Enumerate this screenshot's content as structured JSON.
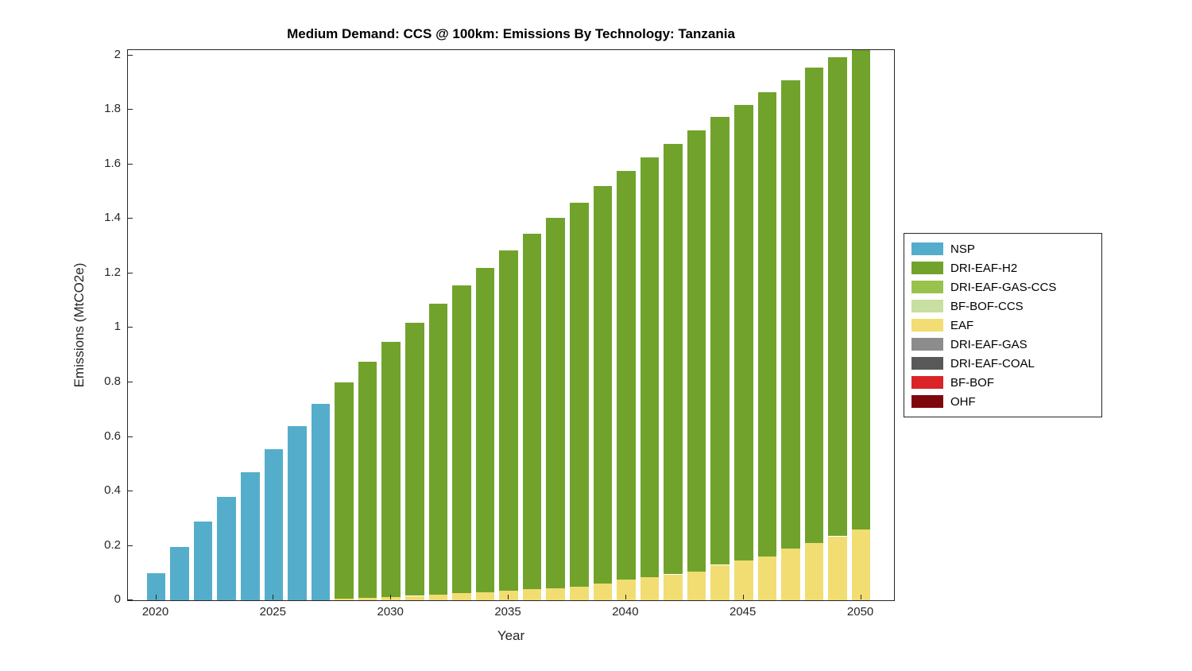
{
  "chart_data": {
    "type": "bar",
    "stacked": true,
    "title": "Medium Demand: CCS @ 100km: Emissions By Technology: Tanzania",
    "xlabel": "Year",
    "ylabel": "Emissions (MtCO2e)",
    "grid": false,
    "legend_position": "outside-right",
    "axis_color": "#262626",
    "bar_rel_width": 0.8,
    "xlim": [
      2018.8,
      2051.4
    ],
    "ylim": [
      0,
      2.02
    ],
    "xticks": [
      2020,
      2025,
      2030,
      2035,
      2040,
      2045,
      2050
    ],
    "yticks": [
      0,
      0.2,
      0.4,
      0.6,
      0.8,
      1,
      1.2,
      1.4,
      1.6,
      1.8,
      2
    ],
    "ytick_labels": [
      "0",
      "0.2",
      "0.4",
      "0.6",
      "0.8",
      "1",
      "1.2",
      "1.4",
      "1.6",
      "1.8",
      "2"
    ],
    "x": [
      2020,
      2021,
      2022,
      2023,
      2024,
      2025,
      2026,
      2027,
      2028,
      2029,
      2030,
      2031,
      2032,
      2033,
      2034,
      2035,
      2036,
      2037,
      2038,
      2039,
      2040,
      2041,
      2042,
      2043,
      2044,
      2045,
      2046,
      2047,
      2048,
      2049,
      2050
    ],
    "stack_order": [
      "OHF",
      "BF-BOF",
      "DRI-EAF-COAL",
      "DRI-EAF-GAS",
      "EAF",
      "BF-BOF-CCS",
      "DRI-EAF-GAS-CCS",
      "DRI-EAF-H2",
      "NSP"
    ],
    "series": [
      {
        "name": "NSP",
        "color": "#54AECB",
        "values": [
          0.1,
          0.195,
          0.29,
          0.38,
          0.47,
          0.555,
          0.64,
          0.72,
          0,
          0,
          0,
          0,
          0,
          0,
          0,
          0,
          0,
          0,
          0,
          0,
          0,
          0,
          0,
          0,
          0,
          0,
          0,
          0,
          0,
          0,
          0
        ]
      },
      {
        "name": "DRI-EAF-H2",
        "color": "#71A32C",
        "values": [
          0,
          0,
          0,
          0,
          0,
          0,
          0,
          0,
          0.795,
          0.867,
          0.938,
          1.004,
          1.07,
          1.13,
          1.19,
          1.25,
          1.305,
          1.36,
          1.41,
          1.46,
          1.5,
          1.54,
          1.58,
          1.62,
          1.645,
          1.675,
          1.705,
          1.72,
          1.745,
          1.76,
          1.77
        ]
      },
      {
        "name": "DRI-EAF-GAS-CCS",
        "color": "#99C24D",
        "values": [
          0,
          0,
          0,
          0,
          0,
          0,
          0,
          0,
          0,
          0,
          0,
          0,
          0,
          0,
          0,
          0,
          0,
          0,
          0,
          0,
          0,
          0,
          0,
          0,
          0,
          0,
          0,
          0,
          0,
          0,
          0
        ]
      },
      {
        "name": "BF-BOF-CCS",
        "color": "#C7DFA0",
        "values": [
          0,
          0,
          0,
          0,
          0,
          0,
          0,
          0,
          0,
          0,
          0,
          0,
          0,
          0,
          0,
          0,
          0,
          0,
          0,
          0,
          0,
          0,
          0,
          0,
          0,
          0,
          0,
          0,
          0,
          0,
          0
        ]
      },
      {
        "name": "EAF",
        "color": "#F2DD72",
        "values": [
          0,
          0,
          0,
          0,
          0,
          0,
          0,
          0,
          0.005,
          0.008,
          0.012,
          0.016,
          0.02,
          0.025,
          0.03,
          0.035,
          0.04,
          0.045,
          0.05,
          0.06,
          0.075,
          0.085,
          0.095,
          0.105,
          0.13,
          0.145,
          0.16,
          0.19,
          0.21,
          0.235,
          0.26
        ]
      },
      {
        "name": "DRI-EAF-GAS",
        "color": "#8C8C8C",
        "values": [
          0,
          0,
          0,
          0,
          0,
          0,
          0,
          0,
          0,
          0,
          0,
          0,
          0,
          0,
          0,
          0,
          0,
          0,
          0,
          0,
          0,
          0,
          0,
          0,
          0,
          0,
          0,
          0,
          0,
          0,
          0
        ]
      },
      {
        "name": "DRI-EAF-COAL",
        "color": "#595959",
        "values": [
          0,
          0,
          0,
          0,
          0,
          0,
          0,
          0,
          0,
          0,
          0,
          0,
          0,
          0,
          0,
          0,
          0,
          0,
          0,
          0,
          0,
          0,
          0,
          0,
          0,
          0,
          0,
          0,
          0,
          0,
          0
        ]
      },
      {
        "name": "BF-BOF",
        "color": "#DB2428",
        "values": [
          0,
          0,
          0,
          0,
          0,
          0,
          0,
          0,
          0,
          0,
          0,
          0,
          0,
          0,
          0,
          0,
          0,
          0,
          0,
          0,
          0,
          0,
          0,
          0,
          0,
          0,
          0,
          0,
          0,
          0,
          0
        ]
      },
      {
        "name": "OHF",
        "color": "#7D070C",
        "values": [
          0,
          0,
          0,
          0,
          0,
          0,
          0,
          0,
          0,
          0,
          0,
          0,
          0,
          0,
          0,
          0,
          0,
          0,
          0,
          0,
          0,
          0,
          0,
          0,
          0,
          0,
          0,
          0,
          0,
          0,
          0
        ]
      }
    ]
  }
}
